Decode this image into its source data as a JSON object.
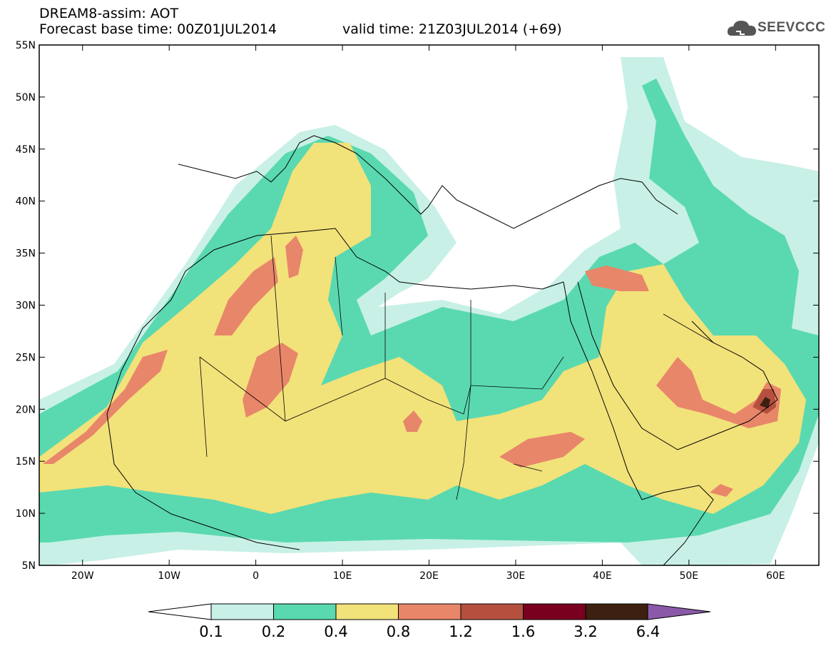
{
  "header": {
    "line1": "DREAM8-assim: AOT",
    "line2": "Forecast base time: 00Z01JUL2014",
    "valid": "valid time: 21Z03JUL2014 (+69)",
    "logo_text": "SEEVCCC"
  },
  "map": {
    "lon_range": [
      -25,
      65
    ],
    "lat_range": [
      5,
      55
    ],
    "lat_ticks": [
      "55N",
      "50N",
      "45N",
      "40N",
      "35N",
      "30N",
      "25N",
      "20N",
      "15N",
      "10N",
      "5N"
    ],
    "lon_ticks": [
      "20W",
      "10W",
      "0",
      "10E",
      "20E",
      "30E",
      "40E",
      "50E",
      "60E"
    ],
    "colors": {
      "c1": "#c8f0e6",
      "c2": "#5ad9b0",
      "c3": "#f2e27a",
      "c4": "#e8866a",
      "c5": "#b5503f",
      "c6": "#7a0020",
      "c7": "#3d2010",
      "c8": "#8a5aa8"
    }
  },
  "colorbar": {
    "labels": [
      "0.1",
      "0.2",
      "0.4",
      "0.8",
      "1.2",
      "1.6",
      "3.2",
      "6.4"
    ],
    "colors": [
      "#c8f0e6",
      "#5ad9b0",
      "#f2e27a",
      "#e8866a",
      "#b5503f",
      "#7a0020",
      "#3d2010"
    ],
    "low_color": "#ffffff",
    "high_color": "#8a5aa8"
  }
}
